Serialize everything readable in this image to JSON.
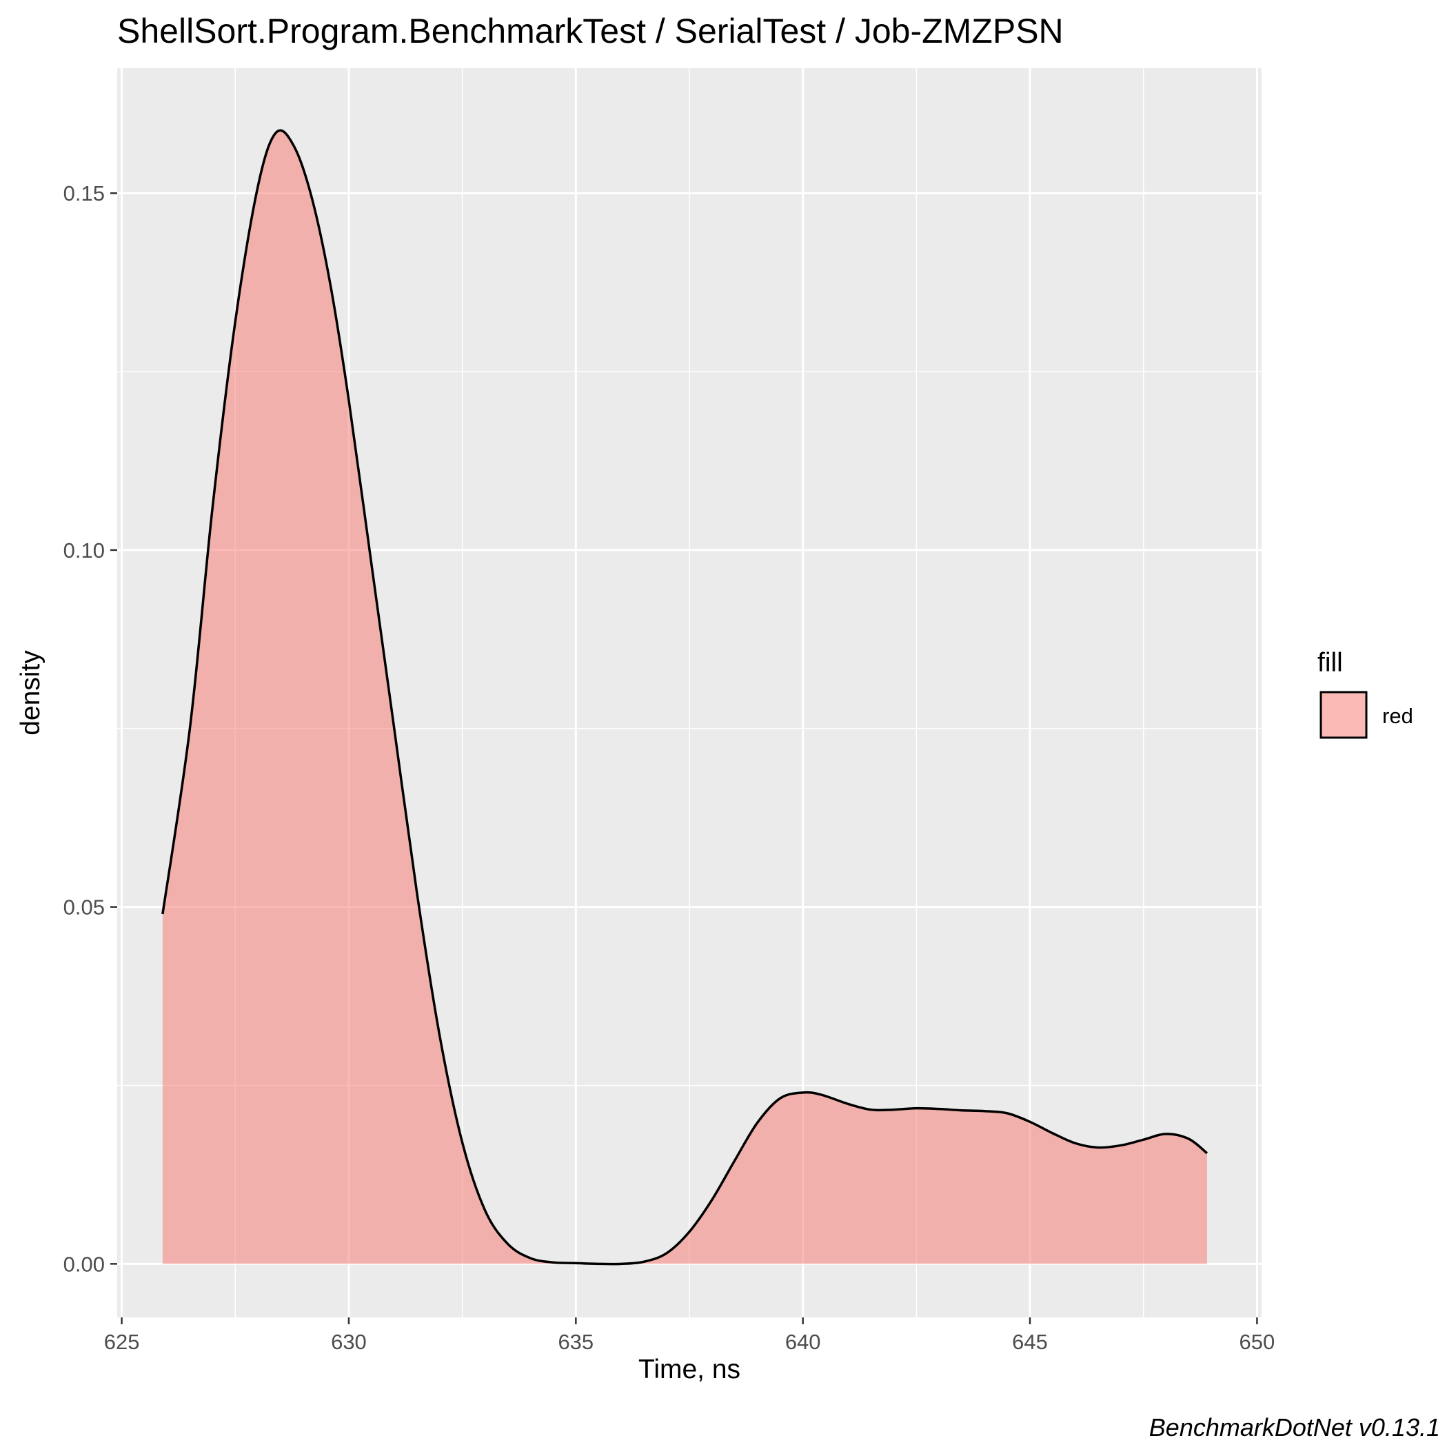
{
  "chart_data": {
    "type": "area",
    "title": "ShellSort.Program.BenchmarkTest / SerialTest / Job-ZMZPSN",
    "xlabel": "Time, ns",
    "ylabel": "density",
    "caption": "BenchmarkDotNet v0.13.1",
    "xlim": [
      624.9,
      650.1
    ],
    "ylim": [
      -0.0075,
      0.1675
    ],
    "x_ticks": [
      625,
      630,
      635,
      640,
      645,
      650
    ],
    "x_tick_labels": [
      "625",
      "630",
      "635",
      "640",
      "645",
      "650"
    ],
    "y_ticks": [
      0.0,
      0.05,
      0.1,
      0.15
    ],
    "y_tick_labels": [
      "0.00",
      "0.05",
      "0.10",
      "0.15"
    ],
    "grid": true,
    "legend": {
      "title": "fill",
      "position": "right",
      "entries": [
        {
          "label": "red",
          "color": "#F8766D"
        }
      ]
    },
    "series": [
      {
        "name": "red",
        "fill_color": "#F8766D",
        "fill_opacity": 0.5,
        "line_color": "#000000",
        "x": [
          625.9,
          626.5,
          627.0,
          627.5,
          628.0,
          628.4,
          628.8,
          629.2,
          629.6,
          630.0,
          630.5,
          631.0,
          631.5,
          632.0,
          632.5,
          633.0,
          633.5,
          634.0,
          634.5,
          635.0,
          635.5,
          636.0,
          636.5,
          637.0,
          637.5,
          638.0,
          638.5,
          639.0,
          639.5,
          640.0,
          640.4,
          641.0,
          641.5,
          642.0,
          642.5,
          643.0,
          643.5,
          644.0,
          644.5,
          645.0,
          645.5,
          646.0,
          646.5,
          647.0,
          647.5,
          648.0,
          648.5,
          648.9
        ],
        "y": [
          0.049,
          0.075,
          0.106,
          0.132,
          0.151,
          0.1585,
          0.1565,
          0.149,
          0.137,
          0.121,
          0.098,
          0.075,
          0.052,
          0.032,
          0.017,
          0.0075,
          0.0028,
          0.0008,
          0.0002,
          0.0001,
          0.0,
          0.0,
          0.0003,
          0.0015,
          0.0045,
          0.009,
          0.0145,
          0.0198,
          0.0232,
          0.024,
          0.0237,
          0.0224,
          0.0216,
          0.0216,
          0.0218,
          0.0217,
          0.0215,
          0.0214,
          0.0211,
          0.0199,
          0.0183,
          0.0169,
          0.0163,
          0.0166,
          0.0174,
          0.0182,
          0.0175,
          0.0155
        ]
      }
    ]
  },
  "colors": {
    "panel_background": "#EBEBEB",
    "grid_major": "#FFFFFF",
    "density_fill": "#F8766D",
    "density_line": "#000000"
  }
}
